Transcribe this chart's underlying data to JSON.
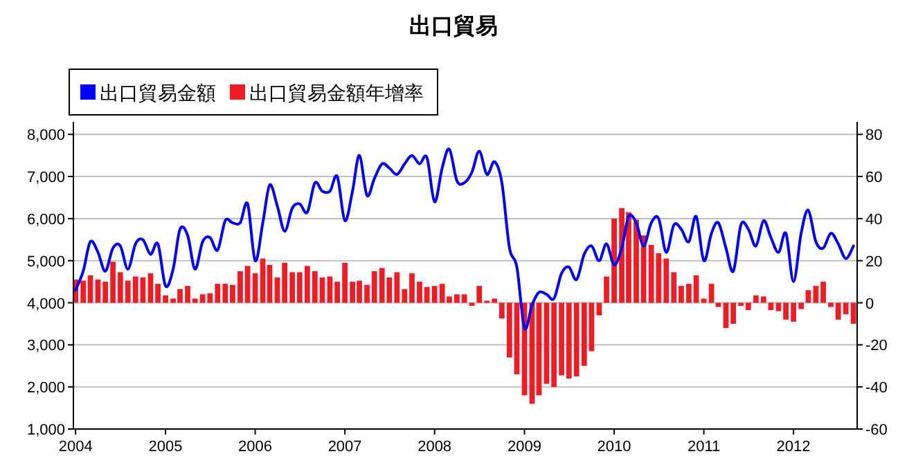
{
  "chart_data": {
    "type": "line",
    "title": "出口貿易",
    "legend": "top left",
    "grid": "y",
    "x": [
      "2004-01",
      "2004-02",
      "2004-03",
      "2004-04",
      "2004-05",
      "2004-06",
      "2004-07",
      "2004-08",
      "2004-09",
      "2004-10",
      "2004-11",
      "2004-12",
      "2005-01",
      "2005-02",
      "2005-03",
      "2005-04",
      "2005-05",
      "2005-06",
      "2005-07",
      "2005-08",
      "2005-09",
      "2005-10",
      "2005-11",
      "2005-12",
      "2006-01",
      "2006-02",
      "2006-03",
      "2006-04",
      "2006-05",
      "2006-06",
      "2006-07",
      "2006-08",
      "2006-09",
      "2006-10",
      "2006-11",
      "2006-12",
      "2007-01",
      "2007-02",
      "2007-03",
      "2007-04",
      "2007-05",
      "2007-06",
      "2007-07",
      "2007-08",
      "2007-09",
      "2007-10",
      "2007-11",
      "2007-12",
      "2008-01",
      "2008-02",
      "2008-03",
      "2008-04",
      "2008-05",
      "2008-06",
      "2008-07",
      "2008-08",
      "2008-09",
      "2008-10",
      "2008-11",
      "2008-12",
      "2009-01",
      "2009-02",
      "2009-03",
      "2009-04",
      "2009-05",
      "2009-06",
      "2009-07",
      "2009-08",
      "2009-09",
      "2009-10",
      "2009-11",
      "2009-12",
      "2010-01",
      "2010-02",
      "2010-03",
      "2010-04",
      "2010-05",
      "2010-06",
      "2010-07",
      "2010-08",
      "2010-09",
      "2010-10",
      "2010-11",
      "2010-12",
      "2011-01",
      "2011-02",
      "2011-03",
      "2011-04",
      "2011-05",
      "2011-06",
      "2011-07",
      "2011-08",
      "2011-09",
      "2011-10",
      "2011-11",
      "2011-12",
      "2012-01",
      "2012-02",
      "2012-03",
      "2012-04",
      "2012-05",
      "2012-06",
      "2012-07",
      "2012-08",
      "2012-09"
    ],
    "series": [
      {
        "name": "出口貿易金額年增率",
        "type": "bar",
        "axis": "y2",
        "color": "#ee1c25",
        "values": [
          11,
          10.5,
          13,
          11,
          10,
          19.5,
          14.5,
          10.5,
          12.5,
          12,
          14,
          9,
          3.5,
          2,
          6.5,
          8,
          2,
          4,
          4.5,
          9,
          9,
          8.5,
          15,
          17.5,
          14,
          21,
          18,
          12,
          19,
          14.5,
          14.5,
          17.5,
          15,
          12,
          12.5,
          10,
          19,
          10,
          10.5,
          8.5,
          15,
          16.5,
          12,
          14.5,
          6.5,
          14,
          10,
          7.5,
          8,
          9,
          3,
          4,
          4,
          -1.5,
          8,
          1,
          2,
          -7.5,
          -26,
          -34,
          -44,
          -48,
          -44,
          -38.5,
          -40,
          -34.5,
          -36,
          -35,
          -30,
          -23,
          -6,
          12.5,
          40,
          45,
          43,
          39.5,
          32,
          27.5,
          23.5,
          21,
          14.5,
          8,
          9,
          13,
          2,
          9,
          -2,
          -12,
          -10,
          -1.5,
          -3.5,
          3.5,
          3,
          -3.5,
          -4,
          -8,
          -9,
          -3,
          6,
          8,
          10,
          -2,
          -8,
          -5.5,
          -10
        ]
      },
      {
        "name": "出口貿易金額",
        "color": "#0000ff",
        "values": [
          4300,
          4750,
          5450,
          5200,
          4750,
          5300,
          5350,
          4800,
          5400,
          5500,
          5150,
          5400,
          4400,
          4800,
          5750,
          5600,
          4800,
          5450,
          5550,
          5250,
          5950,
          5900,
          5900,
          6350,
          5000,
          5900,
          6800,
          6300,
          5700,
          6250,
          6350,
          6150,
          6850,
          6650,
          6650,
          7000,
          5950,
          6650,
          7500,
          6550,
          6950,
          7300,
          7200,
          7050,
          7300,
          7500,
          7300,
          7450,
          6400,
          7200,
          7650,
          6900,
          6850,
          7100,
          7600,
          7050,
          7350,
          6850,
          5300,
          4850,
          3400,
          3950,
          4250,
          4200,
          4100,
          4700,
          4850,
          4550,
          5150,
          5350,
          5000,
          5400,
          4900,
          5300,
          6050,
          5900,
          5350,
          5900,
          6000,
          5200,
          5850,
          5750,
          5450,
          6050,
          5000,
          5650,
          5900,
          5300,
          4750,
          5850,
          5750,
          5350,
          5950,
          5550,
          5200,
          5650,
          4500,
          5650,
          6200,
          5450,
          5300,
          5650,
          5400,
          5050,
          5350
        ]
      }
    ],
    "xlim": [
      "2003-12-23",
      "2012-09-16"
    ],
    "xticks": [
      {
        "value": "2004-01",
        "label": "2004"
      },
      {
        "value": "2005-01",
        "label": "2005"
      },
      {
        "value": "2006-01",
        "label": "2006"
      },
      {
        "value": "2007-01",
        "label": "2007"
      },
      {
        "value": "2008-01",
        "label": "2008"
      },
      {
        "value": "2009-01",
        "label": "2009"
      },
      {
        "value": "2010-01",
        "label": "2010"
      },
      {
        "value": "2011-01",
        "label": "2011"
      },
      {
        "value": "2012-01",
        "label": "2012"
      }
    ],
    "ylim": [
      1000,
      8300
    ],
    "yticks": [
      {
        "value": 1000,
        "label": "1,000"
      },
      {
        "value": 2000,
        "label": "2,000"
      },
      {
        "value": 3000,
        "label": "3,000"
      },
      {
        "value": 4000,
        "label": "4,000"
      },
      {
        "value": 5000,
        "label": "5,000"
      },
      {
        "value": 6000,
        "label": "6,000"
      },
      {
        "value": 7000,
        "label": "7,000"
      },
      {
        "value": 8000,
        "label": "8,000"
      }
    ],
    "y2lim": [
      -60,
      86
    ],
    "y2ticks": [
      -60,
      -40,
      -20,
      0,
      20,
      40,
      60,
      80
    ]
  }
}
